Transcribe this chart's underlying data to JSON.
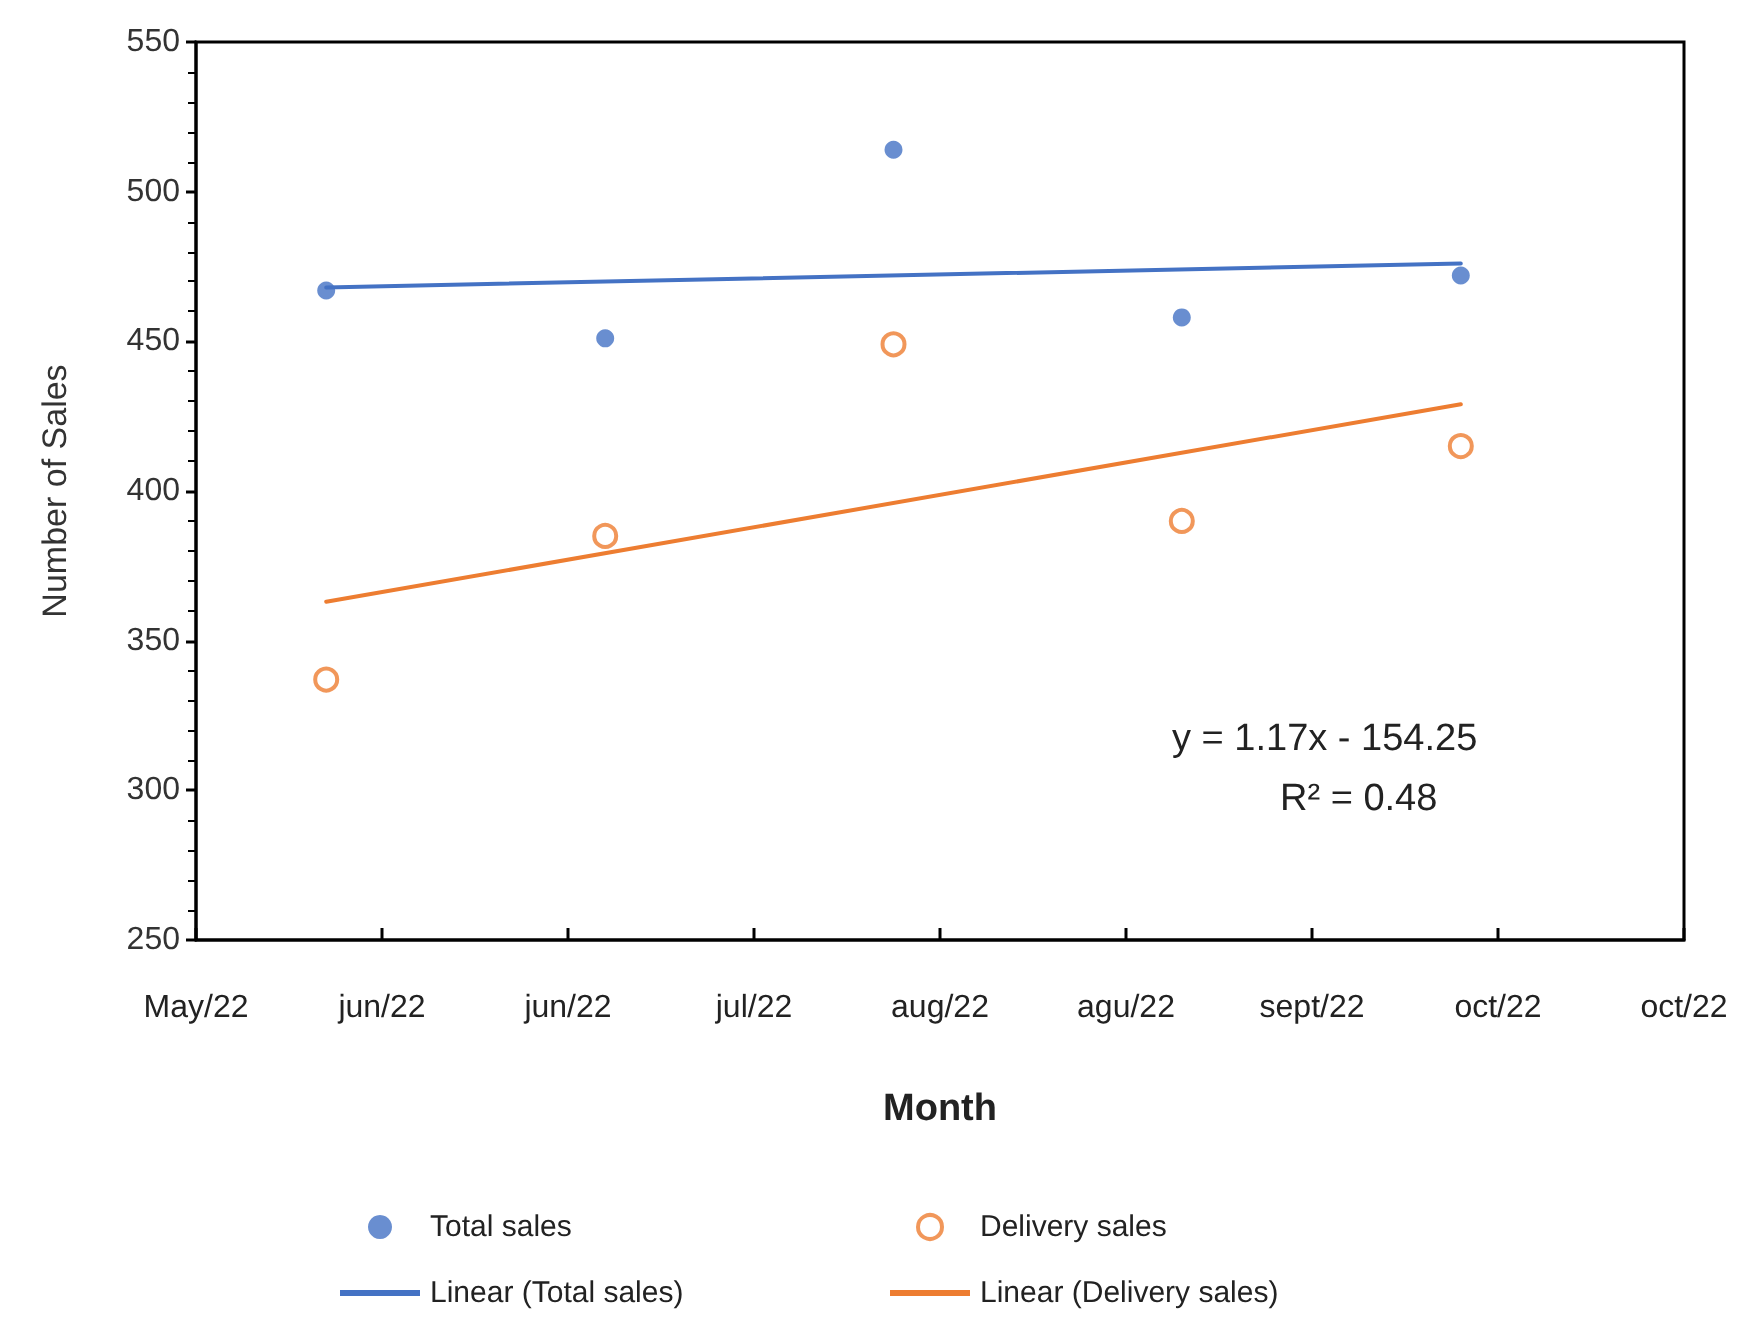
{
  "chart_data": {
    "type": "scatter",
    "xlabel": "Month",
    "ylabel": "Number of Sales",
    "xlim": [
      "2022-05-17",
      "2022-10-24"
    ],
    "xticks": [
      {
        "value": "2022-05-17",
        "label": "May/22"
      },
      {
        "value": "2022-06-06",
        "label": "jun/22"
      },
      {
        "value": "2022-06-26",
        "label": "jun/22"
      },
      {
        "value": "2022-07-16",
        "label": "jul/22"
      },
      {
        "value": "2022-08-05",
        "label": "aug/22"
      },
      {
        "value": "2022-08-25",
        "label": "agu/22"
      },
      {
        "value": "2022-09-14",
        "label": "sept/22"
      },
      {
        "value": "2022-10-04",
        "label": "oct/22"
      },
      {
        "value": "2022-10-24",
        "label": "oct/22"
      }
    ],
    "ylim": [
      250,
      550
    ],
    "yticks": [
      250,
      300,
      350,
      400,
      450,
      500,
      550
    ],
    "series": [
      {
        "name": "Total sales",
        "marker": "circle",
        "color": "#4472c4",
        "x": [
          "2022-05-31",
          "2022-06-30",
          "2022-07-31",
          "2022-08-31",
          "2022-09-30"
        ],
        "values": [
          467,
          451,
          514,
          458,
          472
        ]
      },
      {
        "name": "Delivery sales",
        "marker": "circle",
        "color": "#ed7d31",
        "x": [
          "2022-05-31",
          "2022-06-30",
          "2022-07-31",
          "2022-08-31",
          "2022-09-30"
        ],
        "values": [
          337,
          385,
          449,
          390,
          415
        ]
      },
      {
        "name": "Linear (Total sales)",
        "type": "line",
        "marker": "none",
        "color": "#4472c4",
        "x": [
          "2022-05-31",
          "2022-09-30"
        ],
        "values": [
          468,
          476
        ]
      },
      {
        "name": "Linear (Delivery sales)",
        "type": "line",
        "marker": "none",
        "color": "#ed7d31",
        "x": [
          "2022-05-31",
          "2022-09-30"
        ],
        "values": [
          363,
          429
        ]
      }
    ],
    "annotations": [
      "y = 1.17x - 154.25",
      "R² = 0.48"
    ],
    "grid": false,
    "legend": "bottom"
  }
}
